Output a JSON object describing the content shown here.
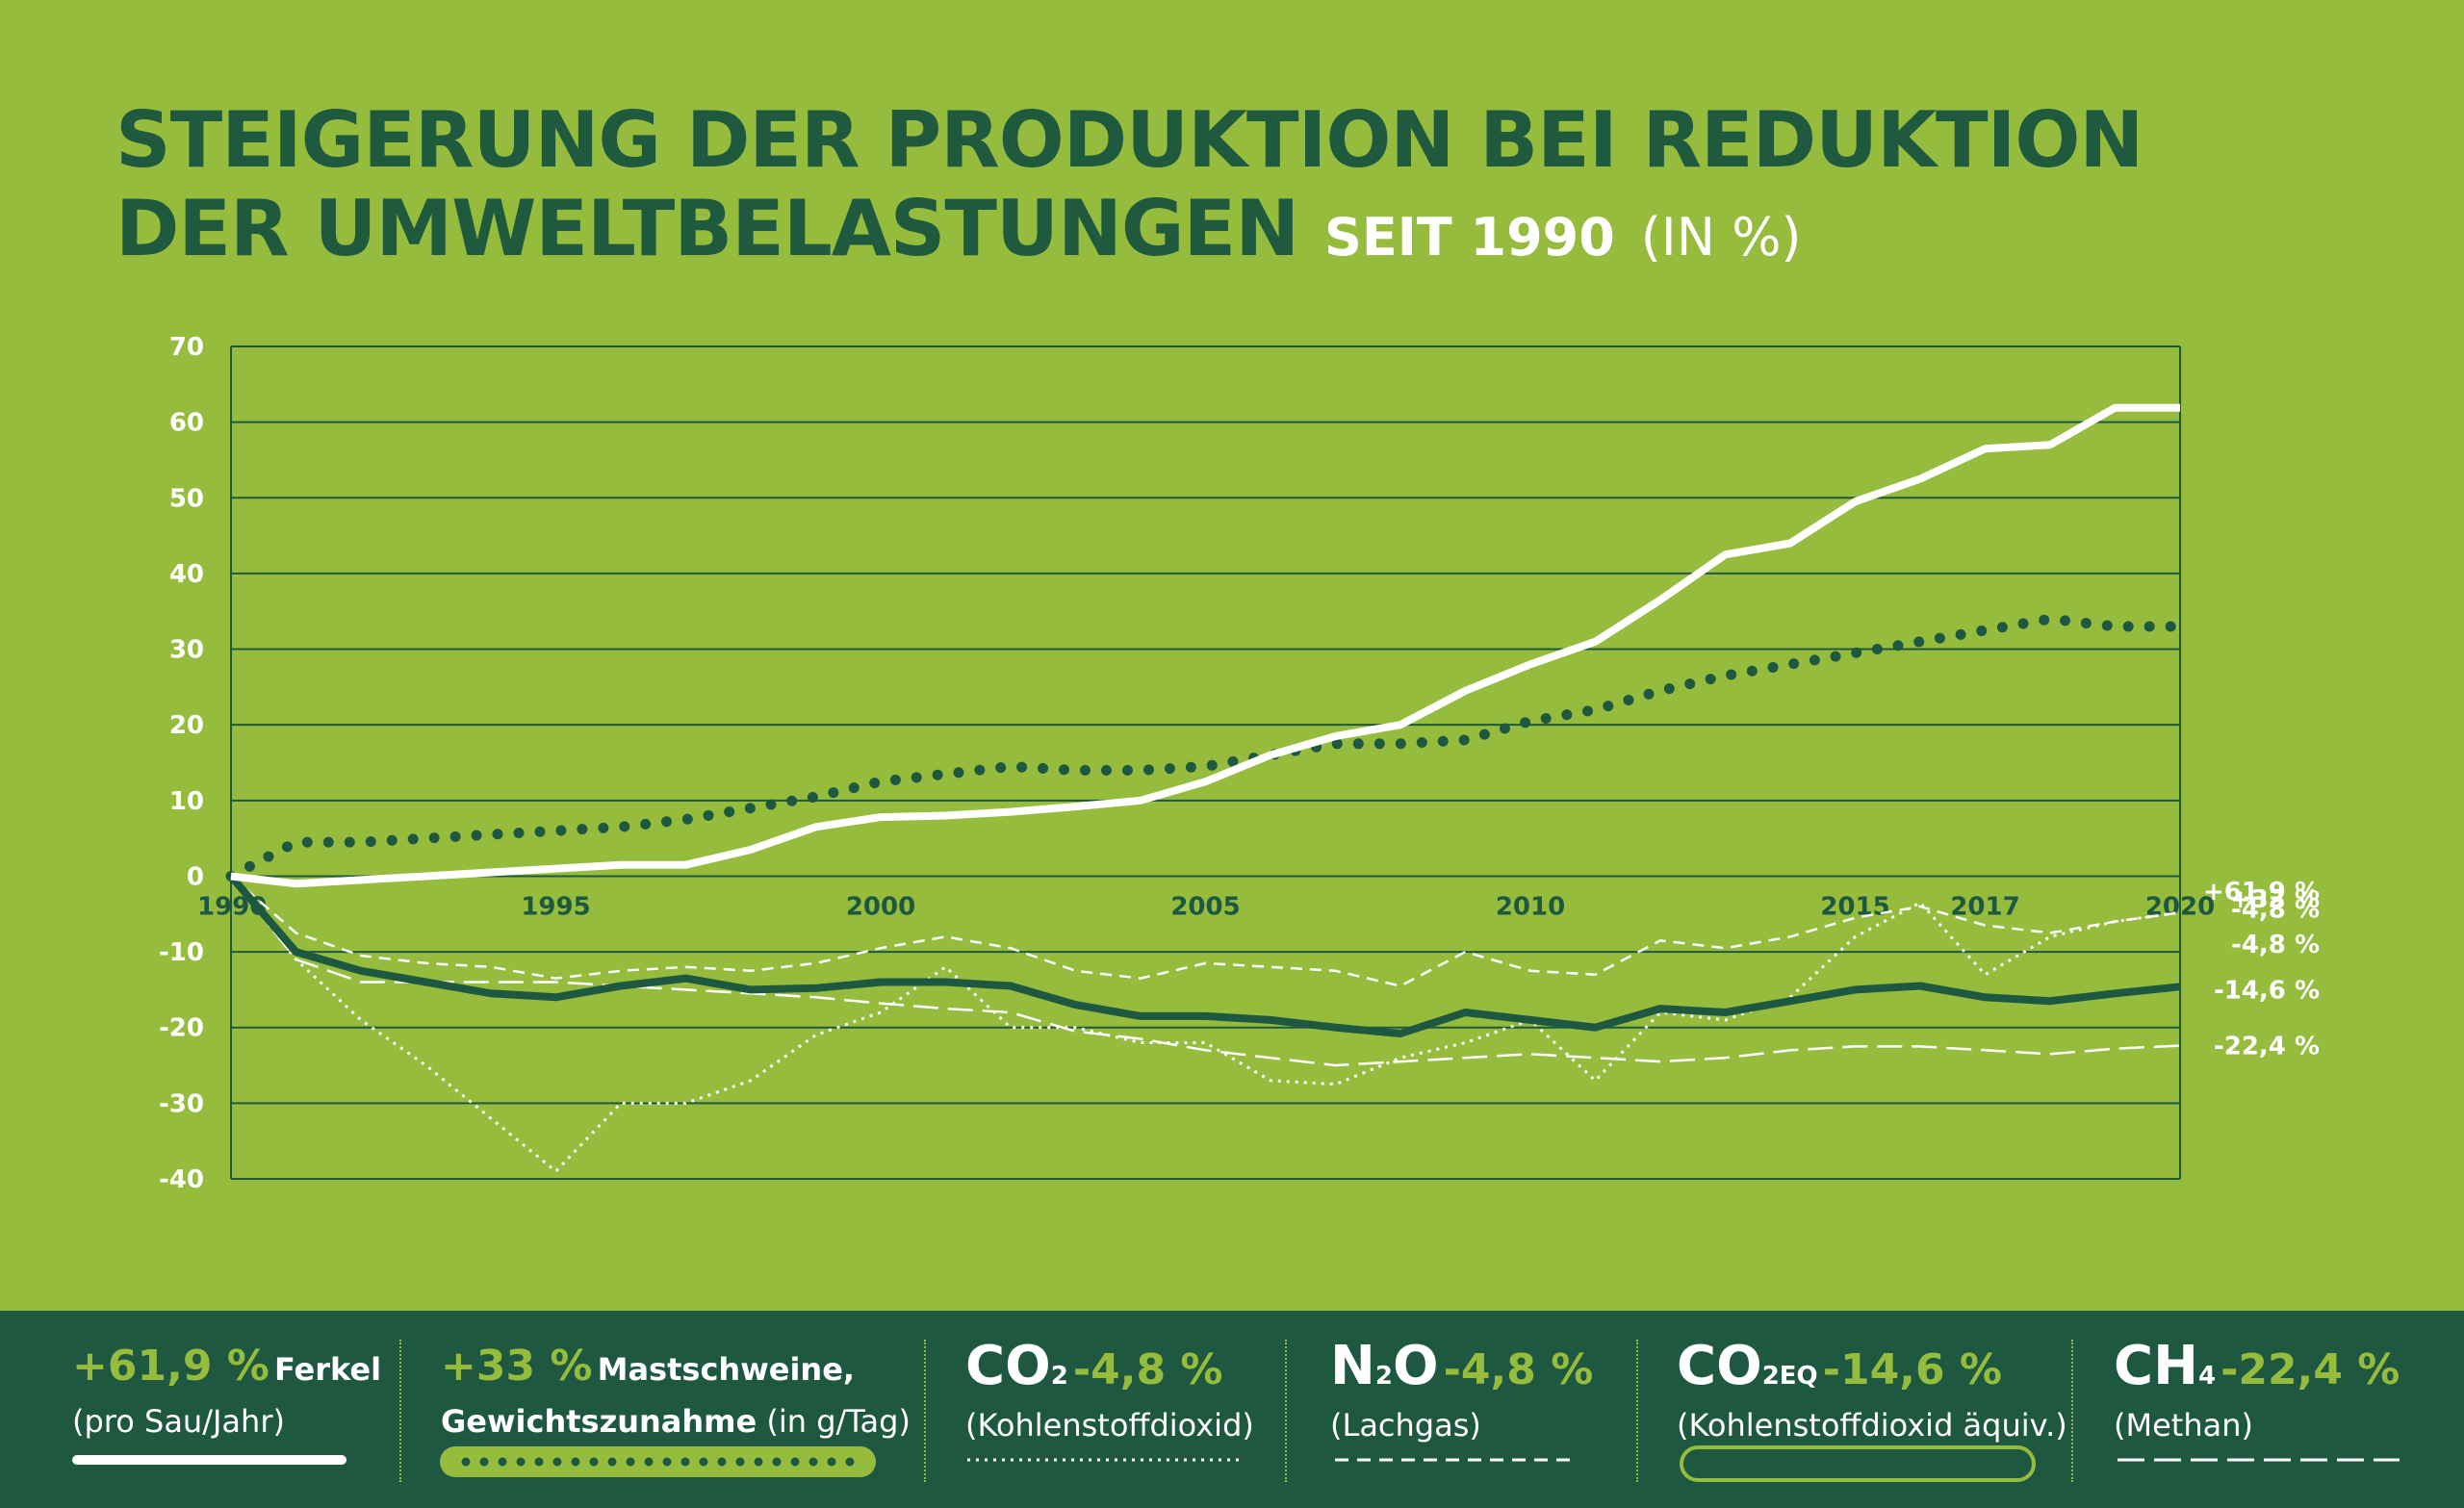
{
  "title": {
    "line1": "STEIGERUNG DER PRODUKTION BEI REDUKTION",
    "line2": "DER UMWELTBELASTUNGEN",
    "suffix_bold": "SEIT 1990",
    "suffix_light": "(IN %)"
  },
  "chart_data": {
    "type": "line",
    "ylim": [
      -40,
      70
    ],
    "yticks": [
      70,
      60,
      50,
      40,
      30,
      20,
      10,
      0,
      -10,
      -20,
      -30,
      -40
    ],
    "xlim": [
      1990,
      2020
    ],
    "xticks": [
      1990,
      1995,
      2000,
      2005,
      2010,
      2015,
      2017,
      2020
    ],
    "grid": true,
    "x": [
      1990,
      1991,
      1992,
      1993,
      1994,
      1995,
      1996,
      1997,
      1998,
      1999,
      2000,
      2001,
      2002,
      2003,
      2004,
      2005,
      2006,
      2007,
      2008,
      2009,
      2010,
      2011,
      2012,
      2013,
      2014,
      2015,
      2016,
      2017,
      2018,
      2019,
      2020
    ],
    "series": [
      {
        "name": "Ferkel",
        "end_label": "+61,9 %",
        "color": "#ffffff",
        "style": "solid-thick",
        "values": [
          0,
          -1,
          -0.5,
          0,
          0.5,
          1,
          1.5,
          1.5,
          3.5,
          6.5,
          7.8,
          8,
          8.5,
          9.2,
          10,
          12.5,
          16,
          18.5,
          20,
          24.5,
          28,
          31,
          36.5,
          42.5,
          44,
          49.5,
          52.5,
          56.5,
          57,
          61.9,
          61.9
        ]
      },
      {
        "name": "Mastschweine",
        "end_label": "+33 %",
        "color": "#1e5840",
        "style": "dotted-thick",
        "values": [
          0,
          4.5,
          4.5,
          5,
          5.5,
          6,
          6.5,
          7.5,
          9,
          10.5,
          12.5,
          13.5,
          14.5,
          14,
          14,
          14.5,
          16,
          17.5,
          17.5,
          18,
          20.5,
          22,
          24.5,
          26.5,
          28,
          29.5,
          31,
          32.5,
          34,
          33,
          33
        ]
      },
      {
        "name": "CO2",
        "end_label": "-4,8 %",
        "color": "#ffffff",
        "style": "dashed",
        "values": [
          0,
          -7.5,
          -10.5,
          -11.5,
          -12,
          -13.5,
          -12.5,
          -12,
          -12.5,
          -11.5,
          -9.5,
          -8,
          -9.5,
          -12.5,
          -13.5,
          -11.5,
          -12,
          -12.5,
          -14.5,
          -10,
          -12.5,
          -13,
          -8.5,
          -9.5,
          -8,
          -5.5,
          -4,
          -6.5,
          -7.5,
          -6,
          -4.8
        ]
      },
      {
        "name": "N2O",
        "end_label": "-4,8 %",
        "color": "#ffffff",
        "style": "dotted",
        "values": [
          0,
          -11,
          -19,
          -25,
          -32,
          -39,
          -30,
          -30,
          -27,
          -21,
          -18,
          -12,
          -20,
          -20,
          -22,
          -22,
          -27,
          -27.5,
          -24,
          -22,
          -19,
          -27,
          -18,
          -19,
          -16,
          -8,
          -3.5,
          -13,
          -8,
          -6,
          -4.8
        ]
      },
      {
        "name": "CO2EQ",
        "end_label": "-14,6 %",
        "color": "#1e5840",
        "style": "solid-thick",
        "values": [
          0,
          -10,
          -12.5,
          -14,
          -15.5,
          -16,
          -14.5,
          -13.5,
          -15,
          -14.8,
          -14,
          -14,
          -14.5,
          -17,
          -18.5,
          -18.5,
          -19,
          -20,
          -20.8,
          -18,
          -19,
          -20,
          -17.5,
          -18,
          -16.5,
          -15,
          -14.5,
          -16,
          -16.5,
          -15.5,
          -14.6
        ]
      },
      {
        "name": "CH4",
        "end_label": "-22,4 %",
        "color": "#ffffff",
        "style": "long-dash",
        "values": [
          0,
          -11,
          -14,
          -14,
          -14,
          -14,
          -14.5,
          -15,
          -15.5,
          -16,
          -16.8,
          -17.5,
          -18,
          -20.5,
          -21.5,
          -23,
          -24,
          -25,
          -24.5,
          -24,
          -23.5,
          -24,
          -24.5,
          -24,
          -23,
          -22.5,
          -22.5,
          -23,
          -23.5,
          -22.8,
          -22.4
        ]
      }
    ]
  },
  "legend": [
    {
      "pct": "+61,9 %",
      "name": "Ferkel",
      "desc": "(pro Sau/Jahr)"
    },
    {
      "pct": "+33 %",
      "name": "Mastschweine,",
      "desc_bold": "Gewichtszunahme",
      "desc": "(in g/Tag)"
    },
    {
      "gas": "CO",
      "sub": "2",
      "pct": "-4,8 %",
      "desc": "(Kohlenstoffdioxid)"
    },
    {
      "gas": "N",
      "sub": "2",
      "gas2": "O",
      "pct": "-4,8 %",
      "desc": "(Lachgas)"
    },
    {
      "gas": "CO",
      "sub": "2EQ",
      "pct": "-14,6 %",
      "desc": "(Kohlenstoffdioxid äquiv.)"
    },
    {
      "gas": "CH",
      "sub": "4",
      "pct": "-22,4 %",
      "desc": "(Methan)"
    }
  ]
}
